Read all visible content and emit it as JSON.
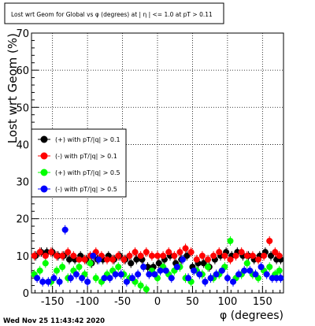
{
  "chart_data": {
    "type": "scatter",
    "title": "Lost wrt Geom for Global vs φ (degrees) at | η | <= 1.0 at pT > 0.11",
    "xlabel": "φ (degrees)",
    "ylabel": "Lost wrt Geom (%)",
    "xlim": [
      -180,
      180
    ],
    "ylim": [
      0,
      70
    ],
    "x_ticks": [
      "-150",
      "-100",
      "-50",
      "0",
      "50",
      "100",
      "150"
    ],
    "x_tick_values": [
      -150,
      -100,
      -50,
      0,
      50,
      100,
      150
    ],
    "y_ticks": [
      "0",
      "10",
      "20",
      "30",
      "40",
      "50",
      "60",
      "70"
    ],
    "y_tick_values": [
      0,
      10,
      20,
      30,
      40,
      50,
      60,
      70
    ],
    "grid": true,
    "legend_position": "left",
    "series": [
      {
        "name": "(+) with pT/|q| > 0.1",
        "color": "#000000",
        "points": [
          [
            -174,
            10
          ],
          [
            -166,
            11
          ],
          [
            -158,
            11
          ],
          [
            -150,
            11
          ],
          [
            -142,
            10
          ],
          [
            -134,
            10
          ],
          [
            -126,
            9
          ],
          [
            -118,
            9
          ],
          [
            -110,
            10
          ],
          [
            -102,
            9
          ],
          [
            -94,
            8
          ],
          [
            -86,
            9
          ],
          [
            -78,
            9
          ],
          [
            -70,
            10
          ],
          [
            -62,
            9
          ],
          [
            -54,
            10
          ],
          [
            -46,
            9
          ],
          [
            -38,
            8
          ],
          [
            -30,
            9
          ],
          [
            -22,
            9
          ],
          [
            -14,
            7
          ],
          [
            -6,
            7
          ],
          [
            2,
            8
          ],
          [
            10,
            9
          ],
          [
            18,
            10
          ],
          [
            26,
            8
          ],
          [
            34,
            9
          ],
          [
            42,
            10
          ],
          [
            50,
            7
          ],
          [
            58,
            8
          ],
          [
            66,
            8
          ],
          [
            74,
            7
          ],
          [
            82,
            9
          ],
          [
            90,
            10
          ],
          [
            98,
            11
          ],
          [
            106,
            10
          ],
          [
            114,
            11
          ],
          [
            122,
            10
          ],
          [
            130,
            10
          ],
          [
            138,
            9
          ],
          [
            146,
            10
          ],
          [
            154,
            11
          ],
          [
            162,
            10
          ],
          [
            170,
            9
          ],
          [
            176,
            9
          ]
        ]
      },
      {
        "name": "(-) with pT/|q| > 0.1",
        "color": "#ff0000",
        "points": [
          [
            -176,
            10
          ],
          [
            -168,
            11
          ],
          [
            -160,
            10
          ],
          [
            -152,
            11
          ],
          [
            -144,
            10
          ],
          [
            -136,
            10
          ],
          [
            -128,
            11
          ],
          [
            -120,
            10
          ],
          [
            -112,
            9
          ],
          [
            -104,
            9
          ],
          [
            -96,
            10
          ],
          [
            -88,
            11
          ],
          [
            -80,
            10
          ],
          [
            -72,
            9
          ],
          [
            -64,
            9
          ],
          [
            -56,
            10
          ],
          [
            -48,
            9
          ],
          [
            -40,
            10
          ],
          [
            -32,
            11
          ],
          [
            -24,
            10
          ],
          [
            -16,
            11
          ],
          [
            -8,
            10
          ],
          [
            0,
            10
          ],
          [
            8,
            10
          ],
          [
            16,
            11
          ],
          [
            24,
            10
          ],
          [
            32,
            11
          ],
          [
            40,
            12
          ],
          [
            48,
            11
          ],
          [
            56,
            9
          ],
          [
            64,
            10
          ],
          [
            72,
            9
          ],
          [
            80,
            10
          ],
          [
            88,
            11
          ],
          [
            96,
            10
          ],
          [
            104,
            9
          ],
          [
            112,
            10
          ],
          [
            120,
            11
          ],
          [
            128,
            10
          ],
          [
            136,
            10
          ],
          [
            144,
            9
          ],
          [
            152,
            10
          ],
          [
            160,
            14
          ],
          [
            168,
            11
          ],
          [
            174,
            10
          ]
        ]
      },
      {
        "name": "(+) with pT/|q| > 0.5",
        "color": "#00ff00",
        "points": [
          [
            -176,
            5
          ],
          [
            -168,
            6
          ],
          [
            -160,
            8
          ],
          [
            -152,
            3
          ],
          [
            -144,
            6
          ],
          [
            -136,
            7
          ],
          [
            -128,
            4
          ],
          [
            -120,
            6
          ],
          [
            -112,
            7
          ],
          [
            -104,
            5
          ],
          [
            -96,
            8
          ],
          [
            -88,
            4
          ],
          [
            -80,
            3
          ],
          [
            -72,
            5
          ],
          [
            -64,
            6
          ],
          [
            -56,
            7
          ],
          [
            -48,
            5
          ],
          [
            -40,
            4
          ],
          [
            -32,
            3
          ],
          [
            -24,
            2
          ],
          [
            -16,
            1
          ],
          [
            -8,
            6
          ],
          [
            0,
            4
          ],
          [
            8,
            7
          ],
          [
            16,
            5
          ],
          [
            24,
            6
          ],
          [
            32,
            7
          ],
          [
            40,
            4
          ],
          [
            48,
            3
          ],
          [
            56,
            6
          ],
          [
            64,
            5
          ],
          [
            72,
            7
          ],
          [
            80,
            4
          ],
          [
            88,
            5
          ],
          [
            96,
            7
          ],
          [
            104,
            14
          ],
          [
            112,
            4
          ],
          [
            120,
            5
          ],
          [
            128,
            8
          ],
          [
            136,
            5
          ],
          [
            144,
            4
          ],
          [
            152,
            6
          ],
          [
            160,
            7
          ],
          [
            168,
            5
          ],
          [
            174,
            6
          ]
        ]
      },
      {
        "name": "(-) with pT/|q| > 0.5",
        "color": "#0000ff",
        "points": [
          [
            -172,
            4
          ],
          [
            -164,
            3
          ],
          [
            -156,
            3
          ],
          [
            -148,
            4
          ],
          [
            -140,
            3
          ],
          [
            -132,
            17
          ],
          [
            -124,
            4
          ],
          [
            -116,
            5
          ],
          [
            -108,
            4
          ],
          [
            -100,
            3
          ],
          [
            -92,
            10
          ],
          [
            -84,
            9
          ],
          [
            -76,
            4
          ],
          [
            -68,
            4
          ],
          [
            -60,
            5
          ],
          [
            -52,
            5
          ],
          [
            -44,
            3
          ],
          [
            -36,
            4
          ],
          [
            -28,
            5
          ],
          [
            -20,
            7
          ],
          [
            -12,
            5
          ],
          [
            -4,
            5
          ],
          [
            4,
            6
          ],
          [
            12,
            6
          ],
          [
            20,
            4
          ],
          [
            28,
            7
          ],
          [
            36,
            9
          ],
          [
            44,
            4
          ],
          [
            52,
            6
          ],
          [
            60,
            5
          ],
          [
            68,
            3
          ],
          [
            76,
            4
          ],
          [
            84,
            5
          ],
          [
            92,
            6
          ],
          [
            100,
            4
          ],
          [
            108,
            3
          ],
          [
            116,
            5
          ],
          [
            124,
            6
          ],
          [
            132,
            6
          ],
          [
            140,
            5
          ],
          [
            148,
            7
          ],
          [
            156,
            5
          ],
          [
            164,
            4
          ],
          [
            170,
            4
          ],
          [
            176,
            4
          ]
        ]
      }
    ]
  },
  "footer": {
    "timestamp": "Wed Nov 25 11:43:42 2020"
  }
}
